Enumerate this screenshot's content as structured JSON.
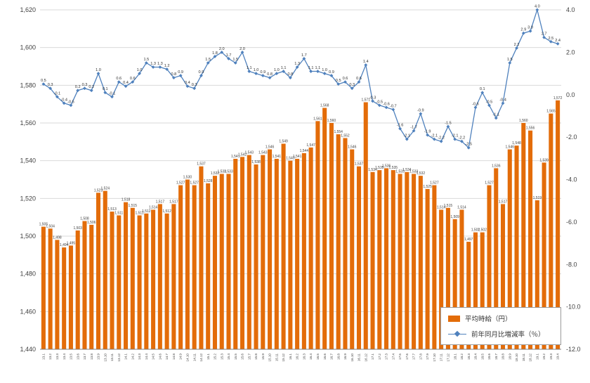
{
  "chart_data": {
    "type": "bar",
    "subtype": "combo-bar-line",
    "title": "",
    "x_labels": [
      "13.1",
      "13.2",
      "13.3",
      "13.4",
      "13.5",
      "13.6",
      "13.7",
      "13.8",
      "13.9",
      "13.10",
      "13.11",
      "13.12",
      "14.1",
      "14.2",
      "14.3",
      "14.4",
      "14.5",
      "14.6",
      "14.7",
      "14.8",
      "14.9",
      "14.10",
      "14.11",
      "14.12",
      "15.1",
      "15.2",
      "15.3",
      "15.4",
      "15.5",
      "15.6",
      "15.7",
      "15.8",
      "15.9",
      "15.10",
      "15.11",
      "15.12",
      "16.1",
      "16.2",
      "16.3",
      "16.4",
      "16.5",
      "16.6",
      "16.7",
      "16.8",
      "16.9",
      "16.10",
      "16.11",
      "16.12",
      "17.1",
      "17.2",
      "17.3",
      "17.4",
      "17.5",
      "17.6",
      "17.7",
      "17.8",
      "17.9",
      "17.10",
      "17.11",
      "17.12",
      "18.1",
      "18.2",
      "18.3",
      "18.4",
      "18.5",
      "18.6",
      "18.7",
      "18.8",
      "18.9",
      "18.10",
      "18.11",
      "18.12",
      "19.1",
      "19.2",
      "19.3",
      "19.4"
    ],
    "series": [
      {
        "name": "平均時給（円）",
        "type": "bar",
        "axis": "left",
        "color": "#e36c09",
        "values": [
          1505,
          1504,
          1498,
          1494,
          1495,
          1503,
          1508,
          1506,
          1523,
          1524,
          1513,
          1511,
          1518,
          1515,
          1511,
          1512,
          1514,
          1517,
          1512,
          1517,
          1527,
          1530,
          1527,
          1537,
          1528,
          1532,
          1533,
          1533,
          1541,
          1542,
          1543,
          1538,
          1543,
          1546,
          1541,
          1549,
          1540,
          1541,
          1544,
          1547,
          1561,
          1568,
          1560,
          1554,
          1552,
          1546,
          1537,
          1571,
          1534,
          1535,
          1536,
          1535,
          1533,
          1534,
          1533,
          1532,
          1525,
          1527,
          1514,
          1515,
          1509,
          1514,
          1497,
          1502,
          1502,
          1527,
          1536,
          1517,
          1546,
          1548,
          1560,
          1556,
          1519,
          1539,
          1565,
          1572
        ]
      },
      {
        "name": "前年同月比増減率（％）",
        "type": "line",
        "axis": "right",
        "color": "#4f81bd",
        "values": [
          0.5,
          0.3,
          -0.1,
          -0.4,
          -0.5,
          0.2,
          0.3,
          0.2,
          1.0,
          0.1,
          -0.1,
          0.6,
          0.4,
          0.6,
          1.0,
          1.5,
          1.3,
          1.3,
          1.2,
          0.8,
          0.9,
          0.4,
          0.3,
          0.9,
          1.5,
          1.8,
          2.0,
          1.7,
          1.5,
          2.0,
          1.1,
          1.0,
          0.9,
          0.8,
          1.0,
          1.1,
          0.8,
          1.3,
          1.7,
          1.1,
          1.1,
          1.0,
          0.9,
          0.5,
          0.6,
          0.3,
          0.6,
          1.4,
          -0.3,
          -0.5,
          -0.6,
          -0.7,
          -1.6,
          -2.1,
          -1.7,
          -0.9,
          -1.9,
          -2.1,
          -2.2,
          -1.5,
          -2.1,
          -2.2,
          -2.5,
          -0.6,
          0.1,
          -0.5,
          -1.1,
          -0.4,
          1.5,
          2.2,
          2.9,
          3.0,
          4.0,
          2.7,
          2.5,
          2.4
        ]
      }
    ],
    "left_axis": {
      "min": 1440,
      "max": 1620,
      "step": 20,
      "ticks": [
        "1,620",
        "1,600",
        "1,580",
        "1,560",
        "1,540",
        "1,520",
        "1,500",
        "1,480",
        "1,460",
        "1,440"
      ]
    },
    "right_axis": {
      "min": -12,
      "max": 4,
      "step": 2,
      "ticks": [
        "4.0",
        "2.0",
        "0.0",
        "-2.0",
        "-4.0",
        "-6.0",
        "-8.0",
        "-10.0",
        "-12.0"
      ]
    },
    "grid": true,
    "legend_position": "inside-bottom-right",
    "legend": {
      "bar_label": "平均時給（円）",
      "line_label": "前年同月比増減率（％）"
    }
  }
}
